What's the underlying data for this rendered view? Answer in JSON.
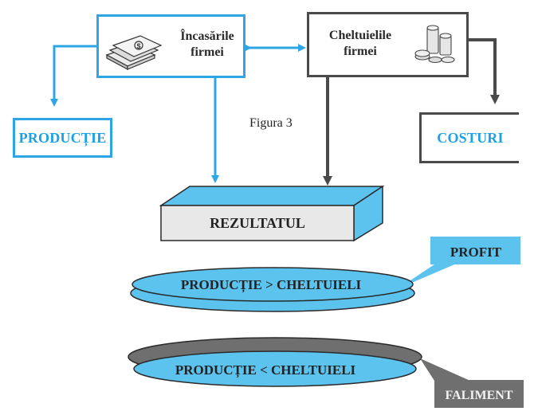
{
  "figure_caption": "Figura 3",
  "nodes": {
    "incasari": {
      "label_line1": "Încasările",
      "label_line2": "firmei",
      "icon": "money-bills-icon"
    },
    "cheltuieli": {
      "label_line1": "Cheltuielile",
      "label_line2": "firmei",
      "icon": "coin-stacks-icon"
    },
    "productie": {
      "label": "PRODUCȚIE"
    },
    "costuri": {
      "label": "COSTURI"
    },
    "rezultatul": {
      "label": "REZULTATUL"
    },
    "profit_condition": {
      "label": "PRODUCȚIE > CHELTUIELI"
    },
    "faliment_condition": {
      "label": "PRODUCȚIE < CHELTUIELI"
    },
    "profit": {
      "label": "PROFIT"
    },
    "faliment": {
      "label": "FALIMENT"
    }
  },
  "colors": {
    "blue": "#2ea6e6",
    "blue_fill": "#5cc3ef",
    "dark": "#4a4a4a",
    "gray_fill": "#6f6f6f",
    "light_gray": "#e8e8e8"
  }
}
